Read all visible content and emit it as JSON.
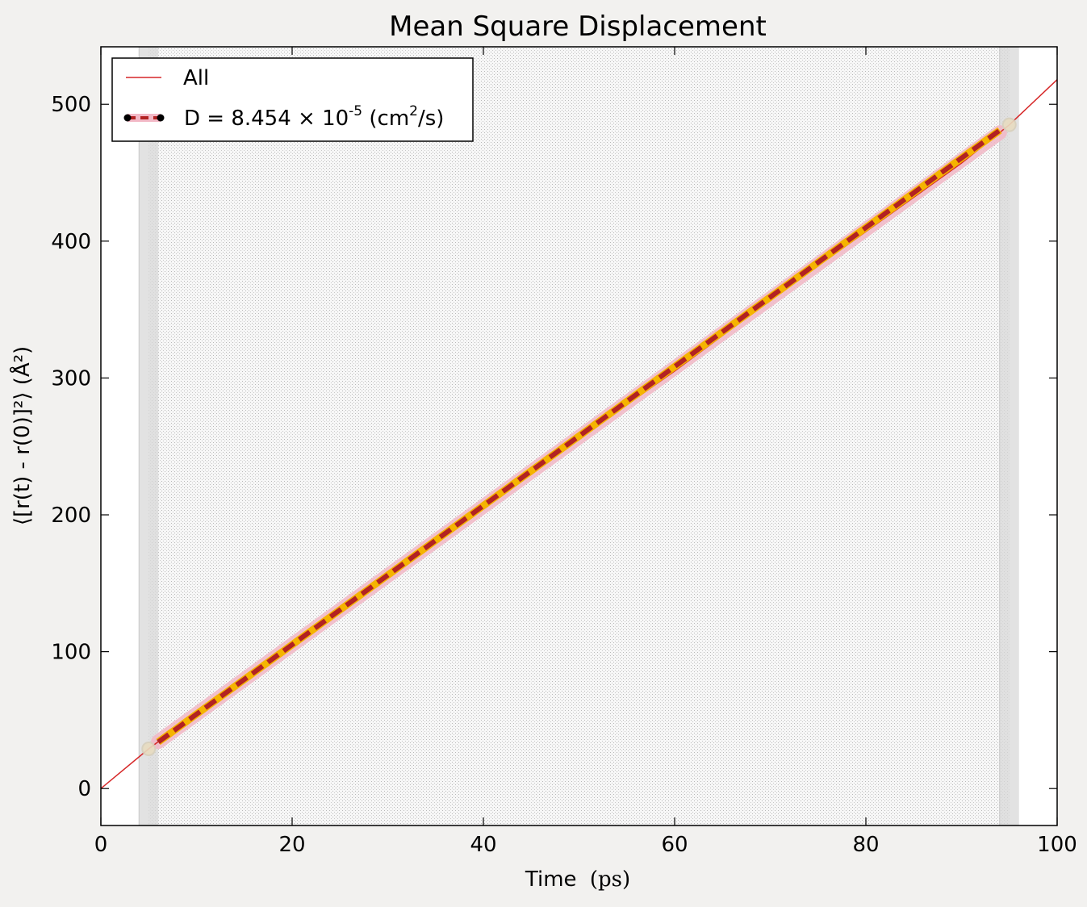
{
  "chart_data": {
    "type": "line",
    "title": "Mean Square Displacement",
    "xlabel": "Time",
    "xlabel_unit": "(ps)",
    "ylabel": "⟨[r(t) - r(0)]²⟩ (Å²)",
    "xlim": [
      0,
      100
    ],
    "ylim": [
      -27,
      542
    ],
    "xticks": [
      0,
      20,
      40,
      60,
      80,
      100
    ],
    "yticks": [
      0,
      100,
      200,
      300,
      400,
      500
    ],
    "grid": false,
    "legend_position": "top-left",
    "colors": {
      "msd_line": "#d62728",
      "fit_dash": "#b22222",
      "fit_glow": "#f5b400",
      "error_band": "#f2b8c6",
      "shaded_region": "#d8d8d8",
      "region_edge": "#c8c8c8"
    },
    "fit_range": [
      5,
      95
    ],
    "series": [
      {
        "name": "All",
        "style": "line",
        "x": [
          0,
          5,
          10,
          20,
          30,
          40,
          50,
          60,
          70,
          80,
          90,
          95,
          100
        ],
        "y": [
          0,
          29,
          55,
          106,
          158,
          207,
          256,
          305,
          357,
          407,
          457,
          485,
          518
        ]
      },
      {
        "name": "D = 8.454 × 10⁻⁵ (cm²/s)",
        "label_parts": {
          "pre": "D = 8.454 × 10",
          "exp": "-5",
          "unit_pre": " (cm",
          "unit_exp": "2",
          "unit_post": "/s)"
        },
        "style": "dashed-fit",
        "x": [
          6,
          94
        ],
        "y": [
          34,
          481
        ]
      }
    ],
    "endpoint_markers": [
      {
        "x": 5,
        "y": 29
      },
      {
        "x": 95,
        "y": 485
      }
    ]
  }
}
